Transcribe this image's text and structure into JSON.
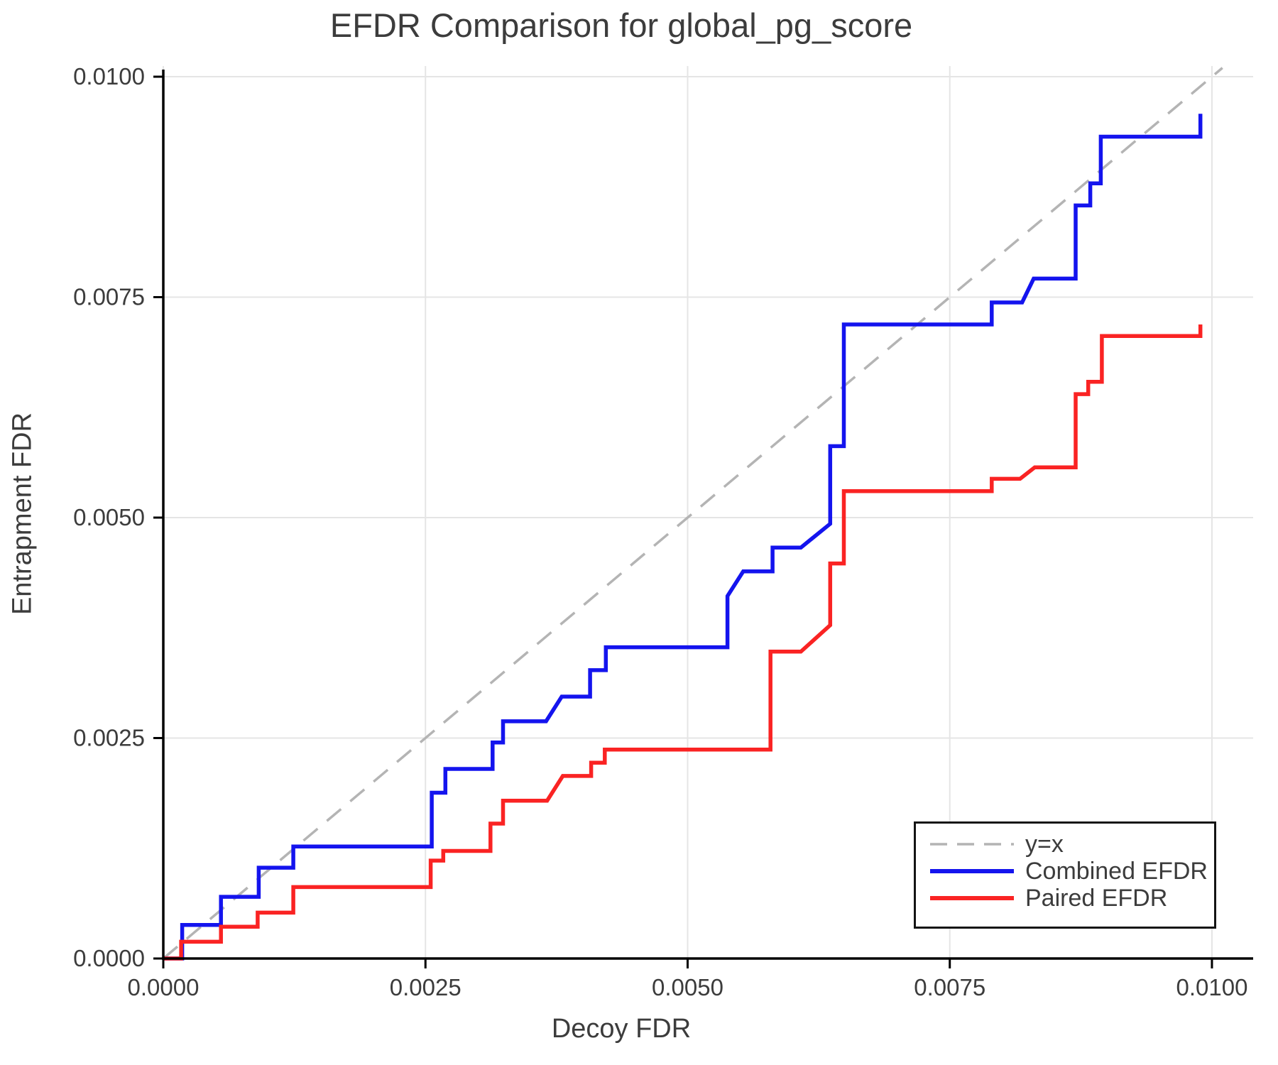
{
  "title": "EFDR Comparison for global_pg_score",
  "x_axis": {
    "label": "Decoy FDR",
    "tick_labels": [
      "0.0000",
      "0.0025",
      "0.0050",
      "0.0075",
      "0.0100"
    ],
    "tick_values": [
      0,
      0.0025,
      0.005,
      0.0075,
      0.01
    ]
  },
  "y_axis": {
    "label": "Entrapment FDR",
    "tick_labels": [
      "0.0000",
      "0.0025",
      "0.0050",
      "0.0075",
      "0.0100"
    ],
    "tick_values": [
      0,
      0.0025,
      0.005,
      0.0075,
      0.01
    ]
  },
  "legend": {
    "items": [
      {
        "label": "y=x",
        "color": "#b4b4b4",
        "dashed": true
      },
      {
        "label": "Combined EFDR",
        "color": "#1414ee",
        "dashed": false
      },
      {
        "label": "Paired EFDR",
        "color": "#fa2323",
        "dashed": false
      }
    ]
  },
  "colors": {
    "grid": "#e5e5e5",
    "axis": "#000000",
    "text": "#3c3c3c"
  },
  "chart_data": {
    "type": "line",
    "title": "EFDR Comparison for global_pg_score",
    "xlabel": "Decoy FDR",
    "ylabel": "Entrapment FDR",
    "xlim": [
      0,
      0.010393
    ],
    "ylim": [
      0,
      0.010121
    ],
    "grid": true,
    "legend_position": "bottom-right",
    "series": [
      {
        "name": "y=x",
        "style": "dashed",
        "color": "#b4b4b4",
        "width": 3.5,
        "points": [
          [
            0,
            0
          ],
          [
            0.0101,
            0.0101
          ]
        ]
      },
      {
        "name": "Combined EFDR",
        "style": "solid",
        "color": "#1414ee",
        "width": 5.5,
        "points": [
          [
            0,
            0
          ],
          [
            0.00018,
            0
          ],
          [
            0.00018,
            0.00038
          ],
          [
            0.00055,
            0.00038
          ],
          [
            0.00055,
            0.0007
          ],
          [
            0.00091,
            0.0007
          ],
          [
            0.00091,
            0.00103
          ],
          [
            0.00124,
            0.00103
          ],
          [
            0.00124,
            0.00127
          ],
          [
            0.00256,
            0.00127
          ],
          [
            0.00256,
            0.00188
          ],
          [
            0.00269,
            0.00188
          ],
          [
            0.00269,
            0.00215
          ],
          [
            0.00314,
            0.00215
          ],
          [
            0.00314,
            0.00245
          ],
          [
            0.00324,
            0.00245
          ],
          [
            0.00324,
            0.00269
          ],
          [
            0.00365,
            0.00269
          ],
          [
            0.0038,
            0.00297
          ],
          [
            0.00407,
            0.00297
          ],
          [
            0.00407,
            0.00327
          ],
          [
            0.00422,
            0.00327
          ],
          [
            0.00422,
            0.00353
          ],
          [
            0.00538,
            0.00353
          ],
          [
            0.00538,
            0.00411
          ],
          [
            0.00553,
            0.00439
          ],
          [
            0.00581,
            0.00439
          ],
          [
            0.00581,
            0.00466
          ],
          [
            0.00608,
            0.00466
          ],
          [
            0.00636,
            0.00493
          ],
          [
            0.00636,
            0.00581
          ],
          [
            0.00649,
            0.00581
          ],
          [
            0.00649,
            0.00719
          ],
          [
            0.0079,
            0.00719
          ],
          [
            0.0079,
            0.00744
          ],
          [
            0.00819,
            0.00744
          ],
          [
            0.0083,
            0.00771
          ],
          [
            0.0087,
            0.00771
          ],
          [
            0.0087,
            0.00854
          ],
          [
            0.00884,
            0.00854
          ],
          [
            0.00884,
            0.00879
          ],
          [
            0.00894,
            0.00879
          ],
          [
            0.00894,
            0.00932
          ],
          [
            0.00989,
            0.00932
          ],
          [
            0.00989,
            0.00958
          ]
        ]
      },
      {
        "name": "Paired EFDR",
        "style": "solid",
        "color": "#fa2323",
        "width": 5.5,
        "points": [
          [
            0,
            0
          ],
          [
            0.00017,
            0
          ],
          [
            0.00017,
            0.00019
          ],
          [
            0.00055,
            0.00019
          ],
          [
            0.00055,
            0.00036
          ],
          [
            0.0009,
            0.00036
          ],
          [
            0.0009,
            0.00052
          ],
          [
            0.00124,
            0.00052
          ],
          [
            0.00124,
            0.00081
          ],
          [
            0.00255,
            0.00081
          ],
          [
            0.00255,
            0.00111
          ],
          [
            0.00267,
            0.00111
          ],
          [
            0.00267,
            0.00122
          ],
          [
            0.00312,
            0.00122
          ],
          [
            0.00312,
            0.00153
          ],
          [
            0.00324,
            0.00153
          ],
          [
            0.00324,
            0.00179
          ],
          [
            0.00366,
            0.00179
          ],
          [
            0.00381,
            0.00207
          ],
          [
            0.00408,
            0.00207
          ],
          [
            0.00408,
            0.00222
          ],
          [
            0.00421,
            0.00222
          ],
          [
            0.00421,
            0.00237
          ],
          [
            0.00579,
            0.00237
          ],
          [
            0.00579,
            0.00348
          ],
          [
            0.00608,
            0.00348
          ],
          [
            0.00636,
            0.00378
          ],
          [
            0.00636,
            0.00448
          ],
          [
            0.00649,
            0.00448
          ],
          [
            0.00649,
            0.0053
          ],
          [
            0.0079,
            0.0053
          ],
          [
            0.0079,
            0.00544
          ],
          [
            0.00817,
            0.00544
          ],
          [
            0.00831,
            0.00557
          ],
          [
            0.0087,
            0.00557
          ],
          [
            0.0087,
            0.0064
          ],
          [
            0.00882,
            0.0064
          ],
          [
            0.00882,
            0.00654
          ],
          [
            0.00895,
            0.00654
          ],
          [
            0.00895,
            0.00706
          ],
          [
            0.00989,
            0.00706
          ],
          [
            0.00989,
            0.00719
          ]
        ]
      }
    ]
  }
}
